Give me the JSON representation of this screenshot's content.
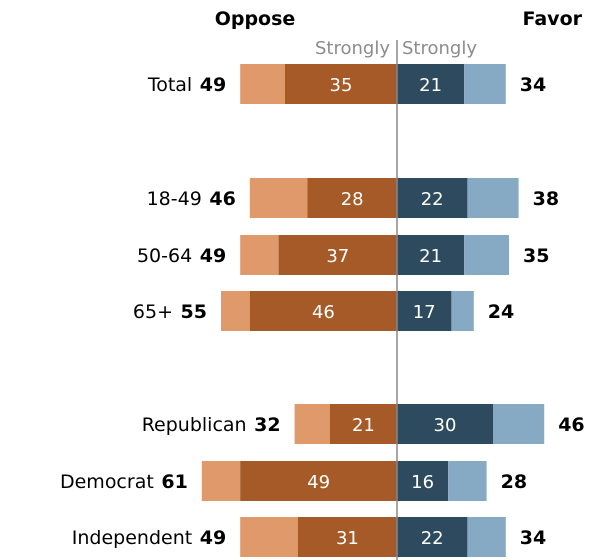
{
  "chart_data": {
    "type": "bar",
    "orientation": "diverging-stacked-horizontal",
    "header": {
      "oppose": "Oppose",
      "favor": "Favor",
      "oppose_strongly": "Strongly",
      "favor_strongly": "Strongly"
    },
    "colors": {
      "oppose_strongly": "#a55a28",
      "oppose_other": "#e0996a",
      "favor_strongly": "#2e4a5e",
      "favor_other": "#86a9c4",
      "center_line": "#888888"
    },
    "rows": [
      {
        "label": "Total",
        "oppose_total": 49,
        "oppose_strongly": 35,
        "favor_strongly": 21,
        "favor_total": 34
      },
      {
        "label": "18-49",
        "oppose_total": 46,
        "oppose_strongly": 28,
        "favor_strongly": 22,
        "favor_total": 38
      },
      {
        "label": "50-64",
        "oppose_total": 49,
        "oppose_strongly": 37,
        "favor_strongly": 21,
        "favor_total": 35
      },
      {
        "label": "65+",
        "oppose_total": 55,
        "oppose_strongly": 46,
        "favor_strongly": 17,
        "favor_total": 24
      },
      {
        "label": "Republican",
        "oppose_total": 32,
        "oppose_strongly": 21,
        "favor_strongly": 30,
        "favor_total": 46
      },
      {
        "label": "Democrat",
        "oppose_total": 61,
        "oppose_strongly": 49,
        "favor_strongly": 16,
        "favor_total": 28
      },
      {
        "label": "Independent",
        "oppose_total": 49,
        "oppose_strongly": 31,
        "favor_strongly": 22,
        "favor_total": 34
      }
    ]
  }
}
